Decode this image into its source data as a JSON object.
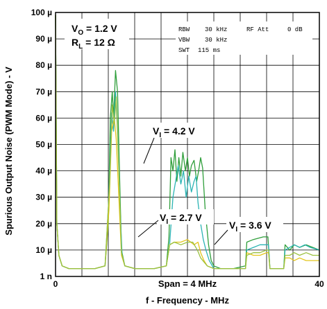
{
  "chart_data": {
    "type": "line",
    "xlabel": "f - Frequency - MHz",
    "ylabel": "Spurious Output Noise (PWM Mode) - V",
    "xlim": [
      0,
      40
    ],
    "ylim": [
      0,
      100
    ],
    "x_ticks": [
      {
        "value": 0,
        "label": "0"
      },
      {
        "value": 40,
        "label": "40"
      }
    ],
    "x_center_label": "Span = 4 MHz",
    "y_ticks": [
      {
        "value": 0,
        "label": "1 n"
      },
      {
        "value": 10,
        "label": "10 µ"
      },
      {
        "value": 20,
        "label": "20 µ"
      },
      {
        "value": 30,
        "label": "30 µ"
      },
      {
        "value": 40,
        "label": "40 µ"
      },
      {
        "value": 50,
        "label": "50 µ"
      },
      {
        "value": 60,
        "label": "60 µ"
      },
      {
        "value": 70,
        "label": "70 µ"
      },
      {
        "value": 80,
        "label": "80 µ"
      },
      {
        "value": 90,
        "label": "90 µ"
      },
      {
        "value": 100,
        "label": "100 µ"
      }
    ],
    "grid": true,
    "conditions": {
      "vo_main": "V",
      "vo_sub": "O",
      "vo_value": " = 1.2 V",
      "rl_main": "R",
      "rl_sub": "L",
      "rl_value": " = 12 Ω"
    },
    "instrument": {
      "rbw_label": "RBW",
      "rbw_value": "30 kHz",
      "rfatt_label": "RF Att",
      "rfatt_value": "0 dB",
      "vbw_label": "VBW",
      "vbw_value": "30 kHz",
      "swt_label": "SWT",
      "swt_value": "115 ms"
    },
    "series": [
      {
        "name_main": "V",
        "name_sub": "I",
        "name_value": " = 4.2 V",
        "color": "#2e9e3a",
        "points": [
          [
            0,
            99
          ],
          [
            0.2,
            20
          ],
          [
            0.5,
            8
          ],
          [
            1,
            4
          ],
          [
            2,
            3
          ],
          [
            4,
            3
          ],
          [
            6,
            3
          ],
          [
            7.5,
            4
          ],
          [
            8,
            20
          ],
          [
            8.3,
            60
          ],
          [
            8.6,
            70
          ],
          [
            8.8,
            60
          ],
          [
            9.1,
            78
          ],
          [
            9.4,
            70
          ],
          [
            9.7,
            40
          ],
          [
            10,
            10
          ],
          [
            10.5,
            4
          ],
          [
            12,
            3
          ],
          [
            15,
            3
          ],
          [
            16.8,
            4
          ],
          [
            17.2,
            15
          ],
          [
            17.5,
            45
          ],
          [
            17.8,
            40
          ],
          [
            18.1,
            48
          ],
          [
            18.4,
            36
          ],
          [
            18.7,
            45
          ],
          [
            19,
            38
          ],
          [
            19.3,
            47
          ],
          [
            19.7,
            40
          ],
          [
            20,
            45
          ],
          [
            20.3,
            38
          ],
          [
            20.6,
            42
          ],
          [
            21,
            44
          ],
          [
            21.4,
            36
          ],
          [
            21.7,
            40
          ],
          [
            22,
            45
          ],
          [
            22.3,
            41
          ],
          [
            22.7,
            25
          ],
          [
            23.2,
            12
          ],
          [
            23.6,
            6
          ],
          [
            24,
            4
          ],
          [
            25,
            3
          ],
          [
            27,
            3
          ],
          [
            28.8,
            4
          ],
          [
            29,
            13
          ],
          [
            30,
            14
          ],
          [
            31.5,
            15
          ],
          [
            32.2,
            15
          ],
          [
            32.5,
            3
          ],
          [
            33,
            3
          ],
          [
            34.6,
            3
          ],
          [
            34.8,
            12
          ],
          [
            35.5,
            10
          ],
          [
            36.2,
            12
          ],
          [
            37,
            11
          ],
          [
            38,
            12
          ],
          [
            39,
            11
          ],
          [
            40,
            10
          ]
        ]
      },
      {
        "name_main": "",
        "name_sub": "",
        "name_value": "",
        "color": "#2ab3b3",
        "points": [
          [
            0,
            99
          ],
          [
            0.2,
            20
          ],
          [
            0.5,
            8
          ],
          [
            1,
            4
          ],
          [
            2,
            3
          ],
          [
            4,
            3
          ],
          [
            6,
            3
          ],
          [
            7.5,
            4
          ],
          [
            8.1,
            30
          ],
          [
            8.5,
            62
          ],
          [
            8.8,
            55
          ],
          [
            9.1,
            70
          ],
          [
            9.5,
            50
          ],
          [
            9.8,
            25
          ],
          [
            10.1,
            8
          ],
          [
            10.5,
            4
          ],
          [
            12,
            3
          ],
          [
            15,
            3
          ],
          [
            16.8,
            4
          ],
          [
            17.3,
            12
          ],
          [
            17.8,
            30
          ],
          [
            18.2,
            36
          ],
          [
            18.6,
            42
          ],
          [
            19,
            35
          ],
          [
            19.4,
            40
          ],
          [
            19.8,
            30
          ],
          [
            20.2,
            38
          ],
          [
            20.6,
            32
          ],
          [
            21,
            36
          ],
          [
            21.3,
            38
          ],
          [
            21.6,
            28
          ],
          [
            22,
            20
          ],
          [
            22.4,
            14
          ],
          [
            22.8,
            10
          ],
          [
            23.3,
            6
          ],
          [
            24,
            3
          ],
          [
            25,
            3
          ],
          [
            27,
            3
          ],
          [
            28.8,
            3
          ],
          [
            29,
            10
          ],
          [
            30,
            11
          ],
          [
            31,
            12
          ],
          [
            32,
            12
          ],
          [
            32.3,
            12
          ],
          [
            32.5,
            3
          ],
          [
            33,
            3
          ],
          [
            34.6,
            3
          ],
          [
            34.8,
            10
          ],
          [
            35.5,
            11
          ],
          [
            36.2,
            12
          ],
          [
            37,
            11
          ],
          [
            37.8,
            12
          ],
          [
            38.6,
            11
          ],
          [
            40,
            10
          ]
        ]
      },
      {
        "name_main": "V",
        "name_sub": "I",
        "name_value": " = 2.7 V",
        "color": "#e3c51b",
        "points": [
          [
            0,
            99
          ],
          [
            0.2,
            20
          ],
          [
            0.5,
            8
          ],
          [
            1,
            4
          ],
          [
            2,
            3
          ],
          [
            4,
            3
          ],
          [
            6,
            3
          ],
          [
            7.5,
            4
          ],
          [
            8.1,
            25
          ],
          [
            8.5,
            55
          ],
          [
            8.9,
            60
          ],
          [
            9.2,
            52
          ],
          [
            9.6,
            30
          ],
          [
            10,
            8
          ],
          [
            10.5,
            4
          ],
          [
            12,
            3
          ],
          [
            15,
            3
          ],
          [
            16.8,
            4
          ],
          [
            17.3,
            12
          ],
          [
            18,
            13
          ],
          [
            19,
            13
          ],
          [
            20,
            14
          ],
          [
            21,
            12
          ],
          [
            21.6,
            13
          ],
          [
            22,
            9
          ],
          [
            22.5,
            6
          ],
          [
            23,
            4
          ],
          [
            24,
            3
          ],
          [
            25,
            3
          ],
          [
            27,
            3
          ],
          [
            28.8,
            3
          ],
          [
            29,
            9
          ],
          [
            30,
            8
          ],
          [
            31,
            8
          ],
          [
            32,
            9
          ],
          [
            32.3,
            9
          ],
          [
            32.5,
            3
          ],
          [
            33,
            3
          ],
          [
            34.6,
            3
          ],
          [
            34.8,
            7
          ],
          [
            35.5,
            7
          ],
          [
            36.2,
            6
          ],
          [
            37,
            7
          ],
          [
            38,
            6
          ],
          [
            39,
            6
          ],
          [
            40,
            6
          ]
        ]
      },
      {
        "name_main": "V",
        "name_sub": "I",
        "name_value": " = 3.6 V",
        "color": "#9ac13f",
        "points": [
          [
            0,
            99
          ],
          [
            0.2,
            20
          ],
          [
            0.5,
            8
          ],
          [
            1,
            4
          ],
          [
            2,
            3
          ],
          [
            4,
            3
          ],
          [
            6,
            3
          ],
          [
            7.5,
            4
          ],
          [
            8.2,
            35
          ],
          [
            8.6,
            65
          ],
          [
            8.9,
            58
          ],
          [
            9.2,
            68
          ],
          [
            9.6,
            40
          ],
          [
            10,
            9
          ],
          [
            10.5,
            4
          ],
          [
            12,
            3
          ],
          [
            15,
            3
          ],
          [
            16.8,
            4
          ],
          [
            17.3,
            12
          ],
          [
            18,
            13
          ],
          [
            19,
            12
          ],
          [
            20,
            13
          ],
          [
            20.8,
            13
          ],
          [
            21.5,
            10
          ],
          [
            22,
            7
          ],
          [
            23,
            4
          ],
          [
            24,
            3
          ],
          [
            25,
            3
          ],
          [
            27,
            3
          ],
          [
            28.8,
            3
          ],
          [
            29,
            8
          ],
          [
            30,
            9
          ],
          [
            31,
            9
          ],
          [
            32,
            10
          ],
          [
            32.3,
            10
          ],
          [
            32.5,
            3
          ],
          [
            33,
            3
          ],
          [
            34.6,
            3
          ],
          [
            34.8,
            8
          ],
          [
            35.5,
            8
          ],
          [
            36.2,
            9
          ],
          [
            37,
            8
          ],
          [
            38,
            9
          ],
          [
            39,
            8
          ],
          [
            40,
            8
          ]
        ]
      }
    ]
  }
}
